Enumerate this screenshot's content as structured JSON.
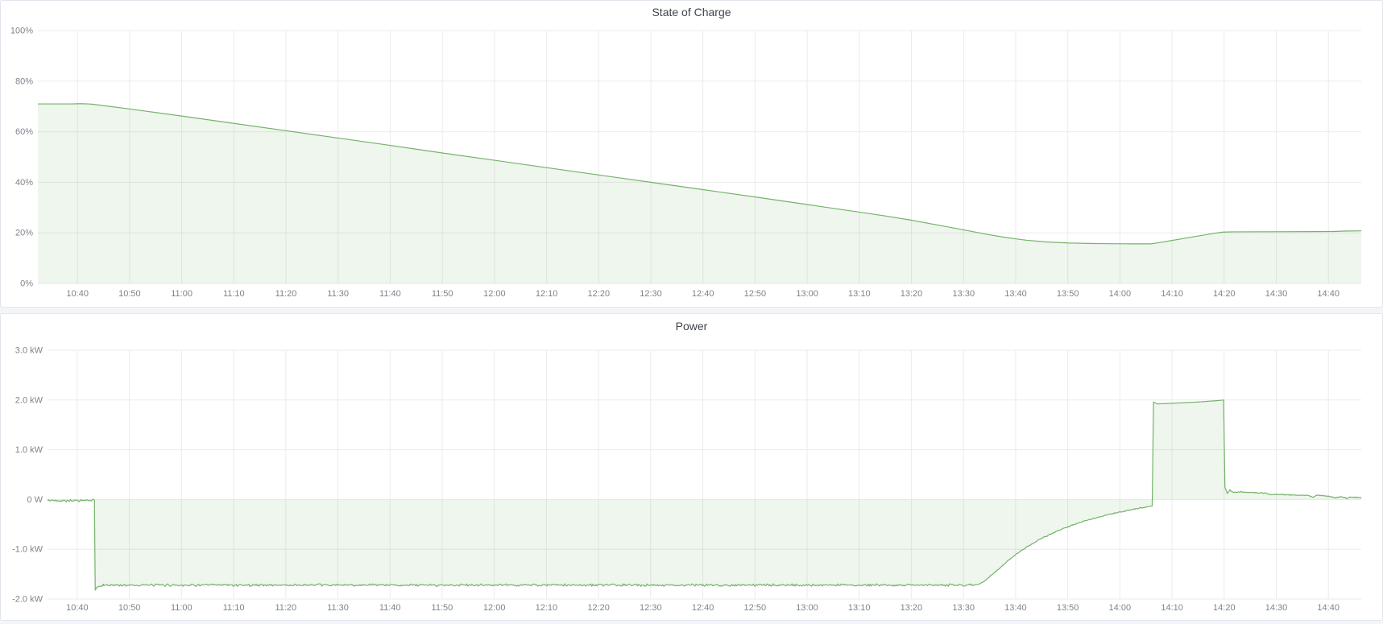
{
  "page": {
    "background_color": "#f4f5f9",
    "panel_border_color": "#e2e6ed",
    "accent_green": "#74b36a"
  },
  "chart_data": [
    {
      "type": "area",
      "title": "State of Charge",
      "xlabel": "",
      "ylabel": "",
      "ylim": [
        0,
        100
      ],
      "grid": true,
      "legend": "none",
      "time_base": "minutes since 10:00",
      "x_domain_m": [
        32.4,
        286.3
      ],
      "y_ticks": [
        {
          "v": 100,
          "label": "100%"
        },
        {
          "v": 80,
          "label": "80%"
        },
        {
          "v": 60,
          "label": "60%"
        },
        {
          "v": 40,
          "label": "40%"
        },
        {
          "v": 20,
          "label": "20%"
        },
        {
          "v": 0,
          "label": "0%"
        }
      ],
      "x_ticks": {
        "start_m": 40,
        "step_m": 10,
        "labels": [
          "10:40",
          "10:50",
          "11:00",
          "11:10",
          "11:20",
          "11:30",
          "11:40",
          "11:50",
          "12:00",
          "12:10",
          "12:20",
          "12:30",
          "12:40",
          "12:50",
          "13:00",
          "13:10",
          "13:20",
          "13:30",
          "13:40",
          "13:50",
          "14:00",
          "14:10",
          "14:20",
          "14:30",
          "14:40"
        ]
      },
      "series": [
        {
          "name": "State of Charge",
          "color": "#74b36a",
          "fill_opacity": 0.12,
          "noise_segments": [],
          "points": [
            [
              32.4,
              71.0
            ],
            [
              36,
              71.0
            ],
            [
              39,
              71.0
            ],
            [
              40.5,
              71.1
            ],
            [
              42,
              71.0
            ],
            [
              43,
              70.85
            ],
            [
              50,
              69.0
            ],
            [
              60,
              66.2
            ],
            [
              70,
              63.3
            ],
            [
              80,
              60.4
            ],
            [
              90,
              57.5
            ],
            [
              100,
              54.6
            ],
            [
              110,
              51.6
            ],
            [
              120,
              48.7
            ],
            [
              130,
              45.8
            ],
            [
              140,
              42.9
            ],
            [
              150,
              40.0
            ],
            [
              160,
              37.1
            ],
            [
              170,
              34.2
            ],
            [
              180,
              31.2
            ],
            [
              190,
              28.2
            ],
            [
              195,
              26.7
            ],
            [
              200,
              25.0
            ],
            [
              205,
              23.1
            ],
            [
              210,
              21.2
            ],
            [
              214,
              19.6
            ],
            [
              218,
              18.2
            ],
            [
              222,
              17.1
            ],
            [
              226,
              16.4
            ],
            [
              230,
              16.0
            ],
            [
              234,
              15.8
            ],
            [
              238,
              15.7
            ],
            [
              242,
              15.65
            ],
            [
              246,
              15.65
            ],
            [
              248,
              16.3
            ],
            [
              250,
              17.0
            ],
            [
              252,
              17.7
            ],
            [
              254,
              18.4
            ],
            [
              256,
              19.1
            ],
            [
              258,
              19.8
            ],
            [
              259.8,
              20.3
            ],
            [
              262,
              20.4
            ],
            [
              270,
              20.45
            ],
            [
              278,
              20.5
            ],
            [
              281,
              20.55
            ],
            [
              283,
              20.7
            ],
            [
              286.3,
              20.8
            ]
          ]
        }
      ]
    },
    {
      "type": "area",
      "title": "Power",
      "xlabel": "",
      "ylabel": "",
      "ylim": [
        -2,
        3
      ],
      "grid": true,
      "legend": "none",
      "time_base": "minutes since 10:00",
      "x_domain_m": [
        34.3,
        286.3
      ],
      "y_ticks": [
        {
          "v": 3,
          "label": "3.0 kW"
        },
        {
          "v": 2,
          "label": "2.0 kW"
        },
        {
          "v": 1,
          "label": "1.0 kW"
        },
        {
          "v": 0,
          "label": "0 W"
        },
        {
          "v": -1,
          "label": "-1.0 kW"
        },
        {
          "v": -2,
          "label": "-2.0 kW"
        }
      ],
      "x_ticks": {
        "start_m": 40,
        "step_m": 10,
        "labels": [
          "10:40",
          "10:50",
          "11:00",
          "11:10",
          "11:20",
          "11:30",
          "11:40",
          "11:50",
          "12:00",
          "12:10",
          "12:20",
          "12:30",
          "12:40",
          "12:50",
          "13:00",
          "13:10",
          "13:20",
          "13:30",
          "13:40",
          "13:50",
          "14:00",
          "14:10",
          "14:20",
          "14:30",
          "14:40"
        ]
      },
      "series": [
        {
          "name": "Power",
          "color": "#74b36a",
          "fill_opacity": 0.12,
          "noise_segments": [
            [
              34.3,
              43.2,
              0.03
            ],
            [
              44.5,
              212,
              0.028
            ],
            [
              213.5,
              245.5,
              0.012
            ],
            [
              260.8,
              286.3,
              0.012
            ]
          ],
          "points": [
            [
              34.3,
              -0.02
            ],
            [
              43.3,
              -0.02
            ],
            [
              43.45,
              -1.82
            ],
            [
              43.8,
              -1.76
            ],
            [
              45,
              -1.72
            ],
            [
              212,
              -1.72
            ],
            [
              213,
              -1.7
            ],
            [
              214,
              -1.64
            ],
            [
              215,
              -1.55
            ],
            [
              216,
              -1.46
            ],
            [
              217.5,
              -1.33
            ],
            [
              219,
              -1.19
            ],
            [
              221,
              -1.03
            ],
            [
              223,
              -0.9
            ],
            [
              225,
              -0.78
            ],
            [
              227,
              -0.68
            ],
            [
              229,
              -0.59
            ],
            [
              231,
              -0.51
            ],
            [
              233,
              -0.44
            ],
            [
              235,
              -0.38
            ],
            [
              237,
              -0.32
            ],
            [
              239,
              -0.275
            ],
            [
              241,
              -0.23
            ],
            [
              243,
              -0.19
            ],
            [
              245,
              -0.155
            ],
            [
              246.2,
              -0.13
            ],
            [
              246.45,
              1.96
            ],
            [
              247.2,
              1.92
            ],
            [
              249,
              1.93
            ],
            [
              252,
              1.945
            ],
            [
              255,
              1.96
            ],
            [
              257,
              1.975
            ],
            [
              259,
              1.99
            ],
            [
              259.9,
              2.0
            ],
            [
              260.15,
              0.25
            ],
            [
              260.6,
              0.12
            ],
            [
              261.1,
              0.19
            ],
            [
              261.7,
              0.145
            ],
            [
              263,
              0.15
            ],
            [
              266,
              0.14
            ],
            [
              268,
              0.13
            ],
            [
              268.6,
              0.1
            ],
            [
              271,
              0.1
            ],
            [
              274,
              0.09
            ],
            [
              276,
              0.085
            ],
            [
              277,
              0.045
            ],
            [
              277.8,
              0.085
            ],
            [
              280,
              0.07
            ],
            [
              281.4,
              0.035
            ],
            [
              282.4,
              0.06
            ],
            [
              283.4,
              0.025
            ],
            [
              284.4,
              0.05
            ],
            [
              286.3,
              0.04
            ]
          ]
        }
      ]
    }
  ]
}
